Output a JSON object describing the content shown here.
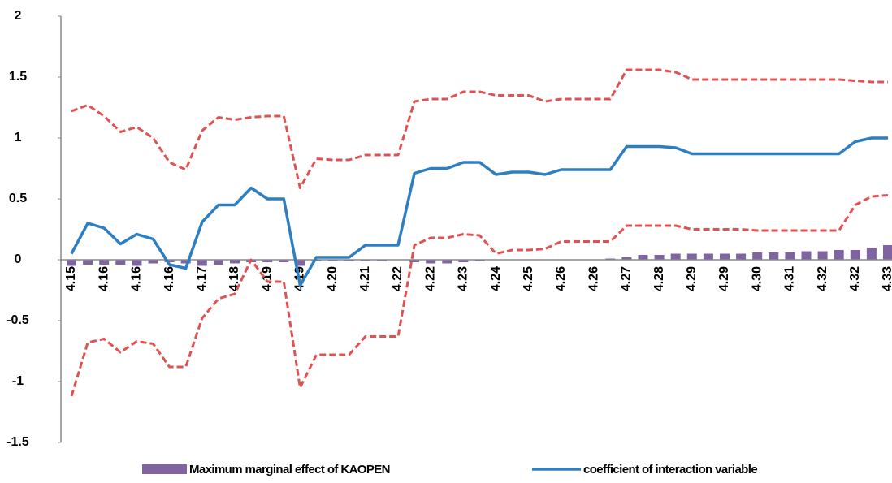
{
  "chart_data": {
    "type": "line",
    "categories": [
      "4.15",
      null,
      "4.16",
      null,
      "4.16",
      null,
      "4.16",
      null,
      "4.17",
      null,
      "4.18",
      null,
      "4.19",
      null,
      "4.19",
      null,
      "4.20",
      null,
      "4.21",
      null,
      "4.22",
      null,
      "4.22",
      null,
      "4.23",
      null,
      "4.24",
      null,
      "4.25",
      null,
      "4.26",
      null,
      "4.26",
      null,
      "4.27",
      null,
      "4.28",
      null,
      "4.29",
      null,
      "4.29",
      null,
      "4.30",
      null,
      "4.31",
      null,
      "4.32",
      null,
      "4.32",
      null,
      "4.33"
    ],
    "series": [
      {
        "name": "Maximum marginal effect of KAOPEN",
        "kind": "bar",
        "color": "#8064a2",
        "values": [
          -0.05,
          -0.04,
          -0.04,
          -0.04,
          -0.05,
          -0.03,
          -0.02,
          -0.03,
          -0.05,
          -0.04,
          -0.03,
          -0.02,
          -0.02,
          -0.02,
          -0.05,
          -0.01,
          -0.01,
          -0.01,
          -0.01,
          -0.01,
          0,
          -0.02,
          -0.03,
          -0.03,
          -0.02,
          -0.01,
          0,
          0,
          0,
          0,
          0,
          0,
          0,
          0.01,
          0.02,
          0.04,
          0.04,
          0.05,
          0.05,
          0.05,
          0.05,
          0.05,
          0.06,
          0.06,
          0.06,
          0.07,
          0.07,
          0.08,
          0.08,
          0.1,
          0.12
        ]
      },
      {
        "name": "coefficient of interaction variable",
        "kind": "line",
        "color": "#2e7fc2",
        "values": [
          0.05,
          0.3,
          0.26,
          0.13,
          0.21,
          0.17,
          -0.04,
          -0.07,
          0.31,
          0.45,
          0.45,
          0.59,
          0.5,
          0.5,
          -0.21,
          0.02,
          0.02,
          0.02,
          0.12,
          0.12,
          0.12,
          0.71,
          0.75,
          0.75,
          0.8,
          0.8,
          0.7,
          0.72,
          0.72,
          0.7,
          0.74,
          0.74,
          0.74,
          0.74,
          0.93,
          0.93,
          0.93,
          0.92,
          0.87,
          0.87,
          0.87,
          0.87,
          0.87,
          0.87,
          0.87,
          0.87,
          0.87,
          0.87,
          0.97,
          1.0,
          1.0
        ]
      },
      {
        "kind": "dashed",
        "color": "#e05252",
        "values": [
          1.22,
          1.27,
          1.18,
          1.05,
          1.09,
          1.0,
          0.8,
          0.74,
          1.06,
          1.17,
          1.15,
          1.17,
          1.18,
          1.18,
          0.59,
          0.83,
          0.82,
          0.82,
          0.86,
          0.86,
          0.86,
          1.3,
          1.32,
          1.32,
          1.38,
          1.38,
          1.35,
          1.35,
          1.35,
          1.3,
          1.32,
          1.32,
          1.32,
          1.32,
          1.56,
          1.56,
          1.56,
          1.54,
          1.48,
          1.48,
          1.48,
          1.48,
          1.48,
          1.48,
          1.48,
          1.48,
          1.48,
          1.48,
          1.47,
          1.46,
          1.46
        ]
      },
      {
        "kind": "dashed",
        "color": "#e05252",
        "values": [
          -1.12,
          -0.68,
          -0.65,
          -0.76,
          -0.67,
          -0.69,
          -0.88,
          -0.88,
          -0.48,
          -0.32,
          -0.28,
          0.0,
          -0.18,
          -0.18,
          -1.05,
          -0.78,
          -0.78,
          -0.78,
          -0.63,
          -0.63,
          -0.63,
          0.12,
          0.18,
          0.18,
          0.21,
          0.2,
          0.05,
          0.08,
          0.08,
          0.09,
          0.15,
          0.15,
          0.15,
          0.15,
          0.28,
          0.28,
          0.28,
          0.28,
          0.25,
          0.25,
          0.25,
          0.25,
          0.24,
          0.24,
          0.24,
          0.24,
          0.24,
          0.24,
          0.45,
          0.52,
          0.53
        ]
      }
    ],
    "ylim": [
      -1.5,
      2
    ],
    "yticks": [
      -1.5,
      -1,
      -0.5,
      0,
      0.5,
      1,
      1.5,
      2
    ],
    "legend": "bottom"
  }
}
